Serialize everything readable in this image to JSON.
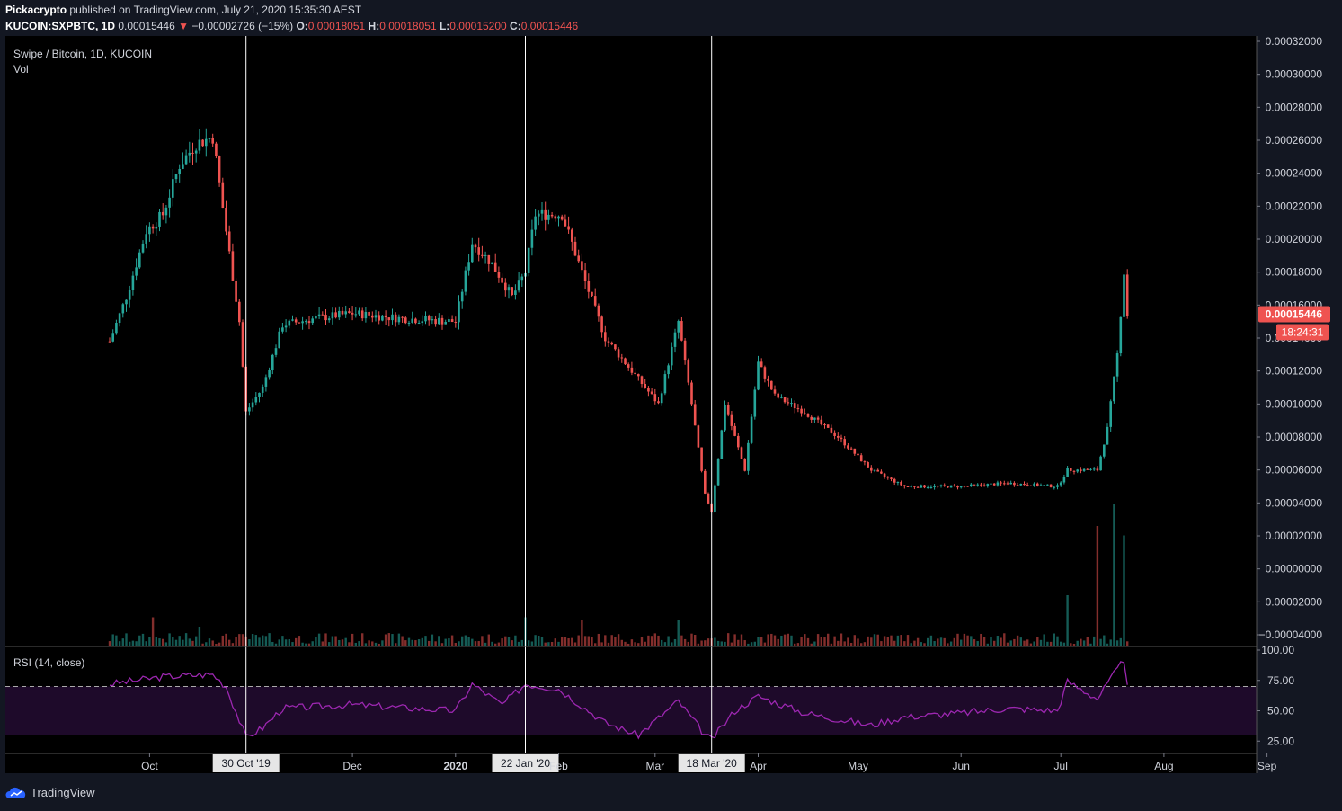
{
  "header": {
    "publisher": "Pickacrypto",
    "published_text": "published on TradingView.com, July 21, 2020 15:35:30 AEST",
    "symbol": "KUCOIN:SXPBTC, 1D",
    "last_price": "0.00015446",
    "change_arrow": "▼",
    "change": "−0.00002726 (−15%)",
    "o_label": "O:",
    "o": "0.00018051",
    "h_label": "H:",
    "h": "0.00018051",
    "l_label": "L:",
    "l": "0.00015200",
    "c_label": "C:",
    "c": "0.00015446"
  },
  "pane_labels": {
    "series": "Swipe / Bitcoin, 1D, KUCOIN",
    "volume": "Vol",
    "rsi": "RSI (14, close)"
  },
  "price_axis": {
    "ticks": [
      "0.00032000",
      "0.00030000",
      "0.00028000",
      "0.00026000",
      "0.00024000",
      "0.00022000",
      "0.00020000",
      "0.00018000",
      "0.00016000",
      "0.00014000",
      "0.00012000",
      "0.00010000",
      "0.00008000",
      "0.00006000",
      "0.00004000",
      "0.00002000",
      "0.00000000",
      "−0.00002000",
      "−0.00004000"
    ],
    "last_price_tag": "0.00015446",
    "countdown_tag": "18:24:31"
  },
  "rsi_axis": {
    "ticks": [
      "100.00",
      "75.00",
      "50.00",
      "25.00"
    ]
  },
  "time_axis": {
    "ticks": [
      "Oct",
      "Dec",
      "2020",
      "Feb",
      "Mar",
      "Apr",
      "May",
      "Jun",
      "Jul",
      "Aug",
      "Sep"
    ],
    "markers": [
      "30 Oct '19",
      "22 Jan '20",
      "18 Mar '20"
    ]
  },
  "brand": {
    "name": "TradingView"
  },
  "colors": {
    "up": "#26a69a",
    "down": "#ef5350",
    "background": "#000000",
    "rsi_line": "#9c27b0",
    "rsi_band": "#1e0a2a",
    "last_price_tag": "#ef5350"
  },
  "chart_data": {
    "type": "candlestick",
    "title": "Swipe / Bitcoin, 1D, KUCOIN",
    "y_unit": "BTC",
    "ylim": [
      -4e-05,
      0.00032
    ],
    "rsi_ylim": [
      20,
      100
    ],
    "rsi_levels": [
      30,
      70
    ],
    "date_start": "2019-09-19",
    "date_end": "2020-07-21",
    "marked_dates": [
      "2019-10-30",
      "2020-01-22",
      "2020-03-18"
    ],
    "price_keypoints": [
      [
        "2019-09-19",
        0.000138
      ],
      [
        "2019-09-24",
        0.000165
      ],
      [
        "2019-09-30",
        0.000205
      ],
      [
        "2019-10-05",
        0.000215
      ],
      [
        "2019-10-10",
        0.000245
      ],
      [
        "2019-10-15",
        0.000258
      ],
      [
        "2019-10-20",
        0.000262
      ],
      [
        "2019-10-24",
        0.000205
      ],
      [
        "2019-10-28",
        0.00015
      ],
      [
        "2019-10-30",
        9.5e-05
      ],
      [
        "2019-11-04",
        0.00011
      ],
      [
        "2019-11-10",
        0.000148
      ],
      [
        "2019-11-20",
        0.000152
      ],
      [
        "2019-12-01",
        0.000155
      ],
      [
        "2019-12-15",
        0.000152
      ],
      [
        "2020-01-01",
        0.00015
      ],
      [
        "2020-01-06",
        0.000198
      ],
      [
        "2020-01-12",
        0.000185
      ],
      [
        "2020-01-18",
        0.000165
      ],
      [
        "2020-01-22",
        0.00018
      ],
      [
        "2020-01-25",
        0.000215
      ],
      [
        "2020-02-02",
        0.000215
      ],
      [
        "2020-02-08",
        0.00018
      ],
      [
        "2020-02-15",
        0.00014
      ],
      [
        "2020-02-25",
        0.000115
      ],
      [
        "2020-03-02",
        0.0001
      ],
      [
        "2020-03-08",
        0.00015
      ],
      [
        "2020-03-12",
        0.0001
      ],
      [
        "2020-03-16",
        4.5e-05
      ],
      [
        "2020-03-18",
        3.5e-05
      ],
      [
        "2020-03-22",
        0.0001
      ],
      [
        "2020-03-28",
        6e-05
      ],
      [
        "2020-04-01",
        0.000125
      ],
      [
        "2020-04-06",
        0.000105
      ],
      [
        "2020-04-15",
        9.5e-05
      ],
      [
        "2020-04-25",
        8e-05
      ],
      [
        "2020-05-05",
        6e-05
      ],
      [
        "2020-05-15",
        5e-05
      ],
      [
        "2020-06-01",
        5e-05
      ],
      [
        "2020-06-15",
        5.2e-05
      ],
      [
        "2020-06-30",
        5e-05
      ],
      [
        "2020-07-03",
        6e-05
      ],
      [
        "2020-07-12",
        6e-05
      ],
      [
        "2020-07-15",
        8.5e-05
      ],
      [
        "2020-07-18",
        0.00013
      ],
      [
        "2020-07-20",
        0.00018
      ],
      [
        "2020-07-21",
        0.000154
      ]
    ],
    "volume_spikes": [
      [
        "2019-10-02",
        0.9
      ],
      [
        "2019-10-16",
        0.6
      ],
      [
        "2020-01-22",
        0.9
      ],
      [
        "2020-02-08",
        0.8
      ],
      [
        "2020-03-08",
        0.8
      ],
      [
        "2020-07-03",
        1.6
      ],
      [
        "2020-07-12",
        3.8
      ],
      [
        "2020-07-17",
        4.5
      ],
      [
        "2020-07-20",
        3.5
      ]
    ],
    "rsi_keypoints": [
      [
        "2019-09-19",
        72
      ],
      [
        "2019-10-05",
        78
      ],
      [
        "2019-10-20",
        80
      ],
      [
        "2019-10-24",
        70
      ],
      [
        "2019-10-30",
        28
      ],
      [
        "2019-11-04",
        36
      ],
      [
        "2019-11-10",
        52
      ],
      [
        "2019-12-01",
        55
      ],
      [
        "2020-01-01",
        50
      ],
      [
        "2020-01-06",
        72
      ],
      [
        "2020-01-15",
        55
      ],
      [
        "2020-01-22",
        72
      ],
      [
        "2020-02-01",
        68
      ],
      [
        "2020-02-15",
        40
      ],
      [
        "2020-02-25",
        30
      ],
      [
        "2020-03-08",
        58
      ],
      [
        "2020-03-16",
        30
      ],
      [
        "2020-03-18",
        26
      ],
      [
        "2020-03-25",
        50
      ],
      [
        "2020-04-01",
        62
      ],
      [
        "2020-04-15",
        48
      ],
      [
        "2020-05-05",
        38
      ],
      [
        "2020-05-15",
        45
      ],
      [
        "2020-06-01",
        48
      ],
      [
        "2020-06-15",
        52
      ],
      [
        "2020-06-30",
        50
      ],
      [
        "2020-07-03",
        74
      ],
      [
        "2020-07-12",
        60
      ],
      [
        "2020-07-17",
        80
      ],
      [
        "2020-07-20",
        92
      ],
      [
        "2020-07-21",
        74
      ]
    ]
  }
}
